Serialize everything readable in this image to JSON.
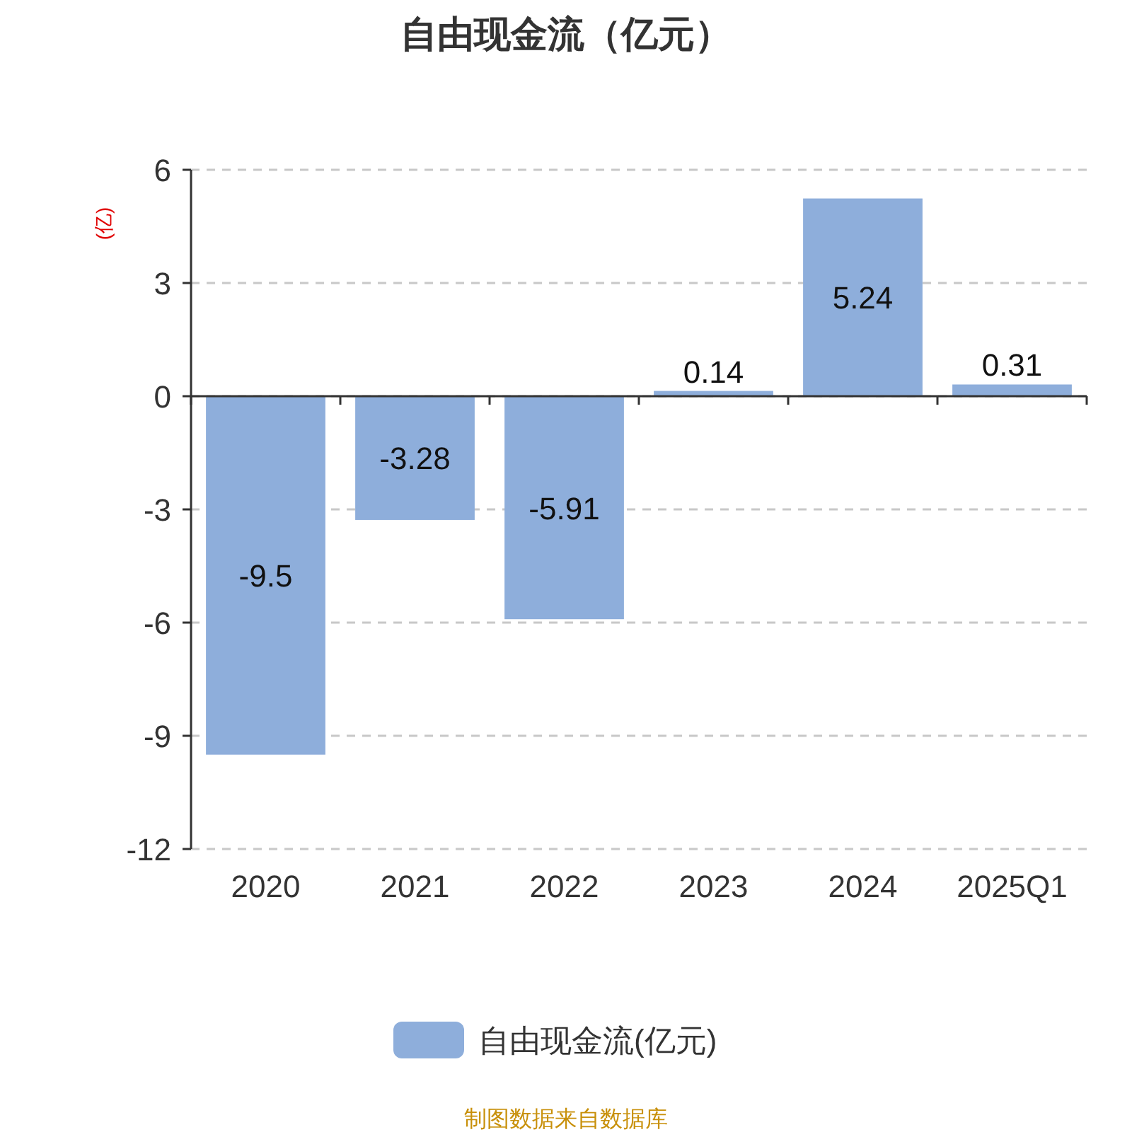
{
  "chart_data": {
    "type": "bar",
    "title": "自由现金流（亿元）",
    "ylabel": "(亿)",
    "categories": [
      "2020",
      "2021",
      "2022",
      "2023",
      "2024",
      "2025Q1"
    ],
    "series": [
      {
        "name": "自由现金流(亿元)",
        "color": "#8eaedb",
        "values": [
          -9.5,
          -3.28,
          -5.91,
          0.14,
          5.24,
          0.31
        ]
      }
    ],
    "ylim": [
      -12,
      6
    ],
    "yticks": [
      -12,
      -9,
      -6,
      -3,
      0,
      3,
      6
    ],
    "grid": "y",
    "legend": "bottom",
    "data_labels": true,
    "annotations": [
      "制图数据来自数据库"
    ]
  }
}
